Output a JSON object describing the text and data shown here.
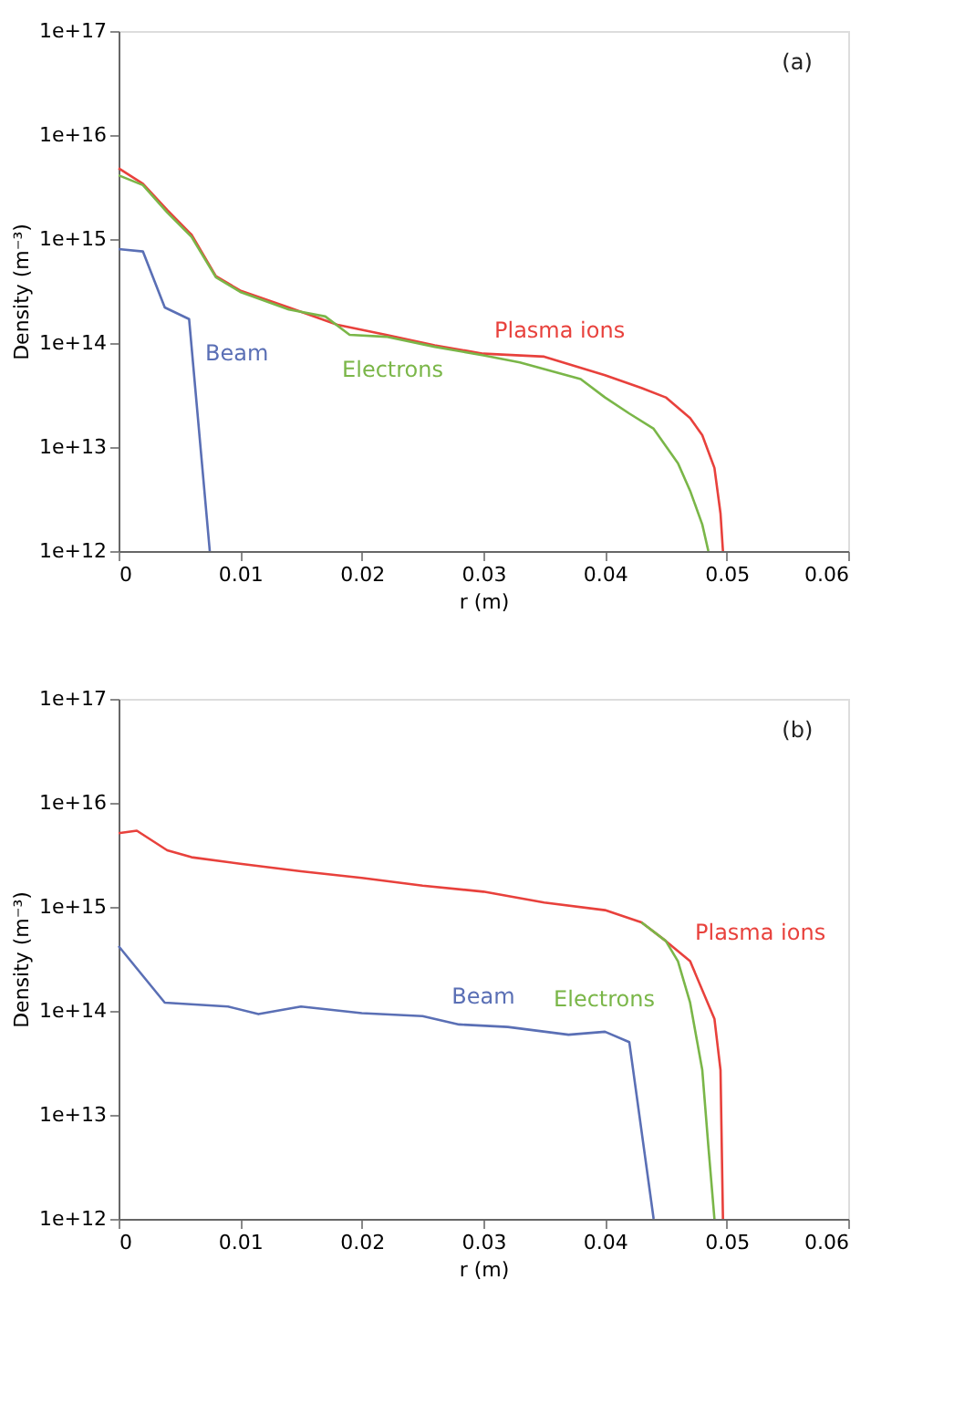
{
  "chart_data": [
    {
      "type": "line",
      "xlabel": "r (m)",
      "ylabel": "Density (m⁻³)",
      "log": "y",
      "grid": false,
      "line_style": "solid",
      "marker": "none",
      "xlim": [
        0,
        0.06
      ],
      "xticks": [
        0,
        0.01,
        0.02,
        0.03,
        0.04,
        0.05,
        0.06
      ],
      "ylim": [
        1000000000000.0,
        1e+17
      ],
      "yticks": [
        {
          "value": 1000000000000.0,
          "label": "1e+12"
        },
        {
          "value": 10000000000000.0,
          "label": "1e+13"
        },
        {
          "value": 100000000000000.0,
          "label": "1e+14"
        },
        {
          "value": 1000000000000000.0,
          "label": "1e+15"
        },
        {
          "value": 1e+16,
          "label": "1e+16"
        },
        {
          "value": 1e+17,
          "label": "1e+17"
        }
      ],
      "series": [
        {
          "name": "Plasma ions",
          "color": "#e8413c",
          "x": [
            0,
            0.002,
            0.004,
            0.006,
            0.008,
            0.01,
            0.014,
            0.018,
            0.022,
            0.026,
            0.03,
            0.035,
            0.04,
            0.043,
            0.045,
            0.047,
            0.048,
            0.049,
            0.0495,
            0.0497
          ],
          "values": [
            4800000000000000.0,
            3400000000000000.0,
            1900000000000000.0,
            1100000000000000.0,
            440000000000000.0,
            320000000000000.0,
            220000000000000.0,
            150000000000000.0,
            120000000000000.0,
            95000000000000.0,
            79000000000000.0,
            74000000000000.0,
            49000000000000.0,
            37000000000000.0,
            30000000000000.0,
            19000000000000.0,
            13000000000000.0,
            6300000000000.0,
            2300000000000.0,
            1000000000000.0
          ]
        },
        {
          "name": "Electrons",
          "color": "#7ab648",
          "x": [
            0,
            0.002,
            0.004,
            0.006,
            0.008,
            0.01,
            0.014,
            0.017,
            0.019,
            0.022,
            0.026,
            0.03,
            0.033,
            0.038,
            0.04,
            0.042,
            0.044,
            0.046,
            0.047,
            0.048,
            0.0485
          ],
          "values": [
            4100000000000000.0,
            3300000000000000.0,
            1800000000000000.0,
            1050000000000000.0,
            430000000000000.0,
            310000000000000.0,
            210000000000000.0,
            180000000000000.0,
            120000000000000.0,
            115000000000000.0,
            92000000000000.0,
            76000000000000.0,
            65000000000000.0,
            45000000000000.0,
            30000000000000.0,
            21000000000000.0,
            15000000000000.0,
            7000000000000.0,
            3800000000000.0,
            1800000000000.0,
            1000000000000.0
          ]
        },
        {
          "name": "Beam",
          "color": "#5a6fb5",
          "x": [
            0,
            0.002,
            0.0038,
            0.0058,
            0.0075
          ],
          "values": [
            800000000000000.0,
            760000000000000.0,
            220000000000000.0,
            170000000000000.0,
            1000000000000.0
          ]
        }
      ],
      "annotations": [
        "(a)"
      ]
    },
    {
      "type": "line",
      "xlabel": "r (m)",
      "ylabel": "Density (m⁻³)",
      "log": "y",
      "grid": false,
      "line_style": "solid",
      "marker": "none",
      "xlim": [
        0,
        0.06
      ],
      "xticks": [
        0,
        0.01,
        0.02,
        0.03,
        0.04,
        0.05,
        0.06
      ],
      "ylim": [
        1000000000000.0,
        1e+17
      ],
      "yticks": [
        {
          "value": 1000000000000.0,
          "label": "1e+12"
        },
        {
          "value": 10000000000000.0,
          "label": "1e+13"
        },
        {
          "value": 100000000000000.0,
          "label": "1e+14"
        },
        {
          "value": 1000000000000000.0,
          "label": "1e+15"
        },
        {
          "value": 1e+16,
          "label": "1e+16"
        },
        {
          "value": 1e+17,
          "label": "1e+17"
        }
      ],
      "series": [
        {
          "name": "Plasma ions",
          "color": "#e8413c",
          "x": [
            0,
            0.0015,
            0.004,
            0.006,
            0.01,
            0.015,
            0.02,
            0.025,
            0.03,
            0.035,
            0.04,
            0.043,
            0.045,
            0.047,
            0.049,
            0.0495,
            0.0497
          ],
          "values": [
            5100000000000000.0,
            5400000000000000.0,
            3500000000000000.0,
            3000000000000000.0,
            2600000000000000.0,
            2200000000000000.0,
            1900000000000000.0,
            1600000000000000.0,
            1400000000000000.0,
            1100000000000000.0,
            930000000000000.0,
            710000000000000.0,
            470000000000000.0,
            300000000000000.0,
            84000000000000.0,
            27000000000000.0,
            1000000000000.0
          ]
        },
        {
          "name": "Electrons",
          "color": "#7ab648",
          "x": [
            0.043,
            0.045,
            0.046,
            0.047,
            0.048,
            0.0485,
            0.049
          ],
          "values": [
            710000000000000.0,
            470000000000000.0,
            300000000000000.0,
            120000000000000.0,
            27000000000000.0,
            5000000000000.0,
            1000000000000.0
          ]
        },
        {
          "name": "Beam",
          "color": "#5a6fb5",
          "x": [
            0,
            0.0038,
            0.009,
            0.0115,
            0.015,
            0.02,
            0.025,
            0.028,
            0.032,
            0.037,
            0.04,
            0.042,
            0.044
          ],
          "values": [
            420000000000000.0,
            120000000000000.0,
            110000000000000.0,
            93000000000000.0,
            110000000000000.0,
            95000000000000.0,
            89000000000000.0,
            74000000000000.0,
            70000000000000.0,
            59000000000000.0,
            63000000000000.0,
            50000000000000.0,
            1000000000000.0
          ]
        }
      ],
      "annotations": [
        "(b)"
      ]
    }
  ]
}
